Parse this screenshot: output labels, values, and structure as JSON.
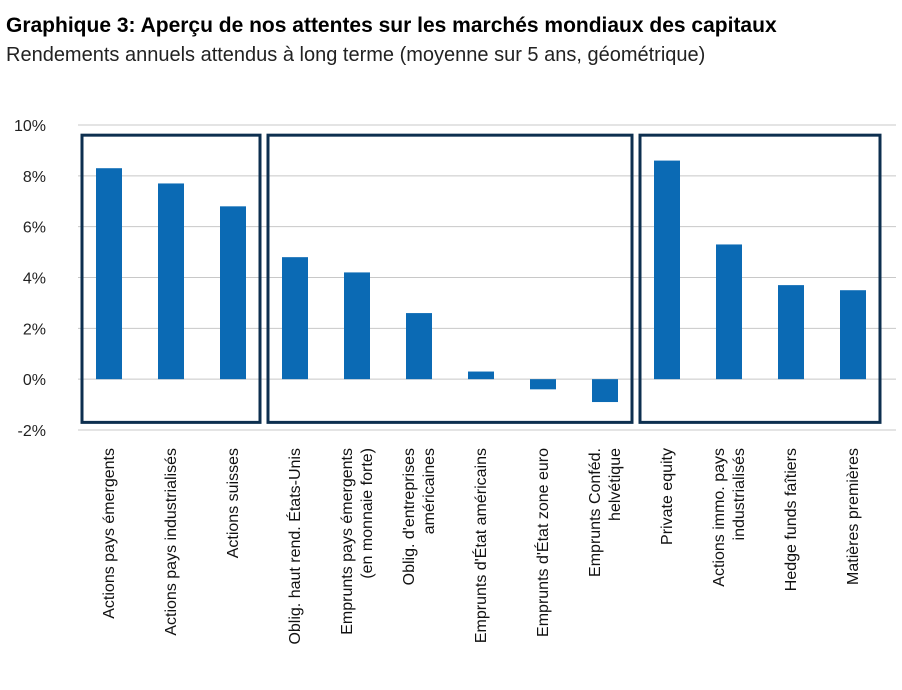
{
  "title": "Graphique 3: Aperçu de nos attentes sur les marchés mondiaux des capitaux",
  "subtitle": "Rendements annuels attendus à long terme (moyenne sur 5 ans, géométrique)",
  "colors": {
    "bar": "#0b6ab4",
    "group_box": "#0d2f4f",
    "grid": "#c8c8c8"
  },
  "chart_data": {
    "type": "bar",
    "ylim": [
      -2,
      10
    ],
    "yticks": [
      -2,
      0,
      2,
      4,
      6,
      8,
      10
    ],
    "ytick_labels": [
      "-2%",
      "0%",
      "2%",
      "4%",
      "6%",
      "8%",
      "10%"
    ],
    "grid": true,
    "categories": [
      [
        "Actions pays émergents"
      ],
      [
        "Actions pays industrialisés"
      ],
      [
        "Actions suisses"
      ],
      [
        "Oblig. haut rend. États-Unis"
      ],
      [
        "Emprunts pays émergents",
        "(en monnaie forte)"
      ],
      [
        "Oblig. d'entreprises",
        "américaines"
      ],
      [
        "Emprunts d'État américains"
      ],
      [
        "Emprunts d'État zone euro"
      ],
      [
        "Emprunts Conféd.",
        "helvétique"
      ],
      [
        "Private equity"
      ],
      [
        "Actions immo. pays",
        "industrialisés"
      ],
      [
        "Hedge funds faîtiers"
      ],
      [
        "Matières premières"
      ]
    ],
    "values": [
      8.3,
      7.7,
      6.8,
      4.8,
      4.2,
      2.6,
      0.3,
      -0.4,
      -0.9,
      8.6,
      5.3,
      3.7,
      3.5
    ],
    "groups": [
      {
        "start": 0,
        "end": 2
      },
      {
        "start": 3,
        "end": 8
      },
      {
        "start": 9,
        "end": 12
      }
    ]
  }
}
